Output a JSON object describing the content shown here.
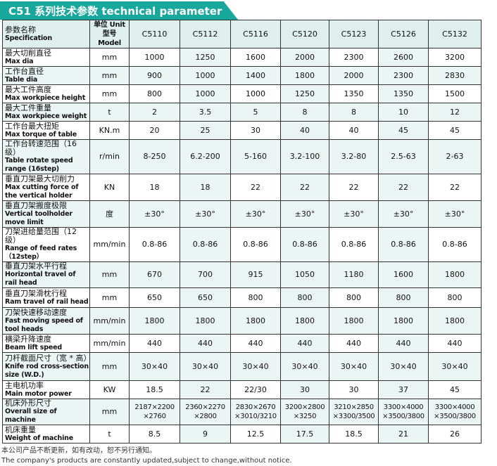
{
  "title": "C51 系列技术参数 technical parameter",
  "header": {
    "spec_cn": "参数名称",
    "spec_en": "Specification",
    "unit_cn": "单位 Unit",
    "unit_en": "型号 Model",
    "models": [
      "C5110",
      "C5112",
      "C5116",
      "C5120",
      "C5123",
      "C5126",
      "C5132"
    ]
  },
  "rows": [
    {
      "cn": "最大切削直径",
      "en": "Max dia",
      "unit": "mm",
      "values": [
        "1000",
        "1250",
        "1600",
        "2000",
        "2300",
        "2600",
        "3200"
      ]
    },
    {
      "cn": "工作台直径",
      "en": "Table dia",
      "unit": "mm",
      "values": [
        "900",
        "1000",
        "1400",
        "1800",
        "2000",
        "2300",
        "2830"
      ]
    },
    {
      "cn": "最大工件高度",
      "en": "Max workpiece height",
      "unit": "mm",
      "values": [
        "800",
        "1000",
        "1000",
        "1250",
        "1350",
        "1350",
        "1500"
      ]
    },
    {
      "cn": "最大工件重量",
      "en": "Max workpiece weight",
      "unit": "t",
      "values": [
        "2",
        "3.5",
        "5",
        "8",
        "8",
        "10",
        "12"
      ]
    },
    {
      "cn": "工作台最大扭矩",
      "en": "Max torque of table",
      "unit": "KN.m",
      "values": [
        "20",
        "25",
        "30",
        "40",
        "40",
        "45",
        "45"
      ]
    },
    {
      "cn": "工作台转速范围（16 级）",
      "en": "Table rotate speed range (16step)",
      "unit": "r/min",
      "values": [
        "8-250",
        "6.2-200",
        "5-160",
        "3.2-100",
        "3.2-80",
        "2.5-63",
        "2-63"
      ]
    },
    {
      "cn": "垂直刀架最大切削力",
      "en": "Max cutting force of the vertical holder",
      "unit": "KN",
      "values": [
        "18",
        "18",
        "22",
        "22",
        "22",
        "22",
        "22"
      ]
    },
    {
      "cn": "垂直刀架搬度极限",
      "en": "Vertical toolholder move limit",
      "unit": "度",
      "values": [
        "±30°",
        "±30°",
        "±30°",
        "±30°",
        "±30°",
        "±30°",
        "±30°"
      ]
    },
    {
      "cn": "刀架进给量范围（12 级）",
      "en": "Range of feed rates（12step）",
      "unit": "mm/min",
      "values": [
        "0.8-86",
        "0.8-86",
        "0.8-86",
        "0.8-86",
        "0.8-86",
        "0.8-86",
        "0.8-86"
      ]
    },
    {
      "cn": "垂直刀架水平行程",
      "en": "Horizontal travel of rail head",
      "unit": "mm",
      "values": [
        "670",
        "700",
        "915",
        "1050",
        "1180",
        "1600",
        "1800"
      ]
    },
    {
      "cn": "垂直刀架滑枕行程",
      "en": "Ram travel of rail head",
      "unit": "mm",
      "values": [
        "650",
        "650",
        "800",
        "800",
        "800",
        "800",
        "800"
      ]
    },
    {
      "cn": "刀架快速移动速度",
      "en": "Fast moving speed of tool heads",
      "unit": "mm/min",
      "values": [
        "1800",
        "1800",
        "1800",
        "1800",
        "1800",
        "1800",
        "1800"
      ]
    },
    {
      "cn": "横梁升降速度",
      "en": "Beam lift speed",
      "unit": "mm/min",
      "values": [
        "440",
        "440",
        "440",
        "440",
        "440",
        "440",
        "440"
      ]
    },
    {
      "cn": "刀杆截面尺寸（宽 * 高）",
      "en": "Knife rod cross-section size (W.D.)",
      "unit": "mm",
      "values": [
        "30×40",
        "30×40",
        "30×40",
        "30×40",
        "30×40",
        "30×40",
        "30×40"
      ]
    },
    {
      "cn": "主电机功率",
      "en": "Main motor power",
      "unit": "KW",
      "values": [
        "18.5",
        "22",
        "22/30",
        "30",
        "30",
        "37",
        "45"
      ]
    },
    {
      "cn": "机床外形尺寸",
      "en": "Overall size of machine",
      "unit": "mm",
      "values": [
        "2187×2200 ×2760",
        "2360×2270 ×2800",
        "2830×2670 ×3010/3210",
        "3200×2800 ×3250",
        "3210×2850 ×3300/3500",
        "3300×4000 ×3500/3800",
        "3300×4000 ×3500/3800"
      ]
    },
    {
      "cn": "机床重量",
      "en": "Weight of machine",
      "unit": "t",
      "values": [
        "8.5",
        "9",
        "12.5",
        "17.5",
        "18.5",
        "21",
        "26"
      ]
    }
  ],
  "footer": {
    "cn": "本公司产品不断更新，如有改动，恕不另行通知。",
    "en": "The company's products are constantly updated,subject to change,without notice."
  }
}
